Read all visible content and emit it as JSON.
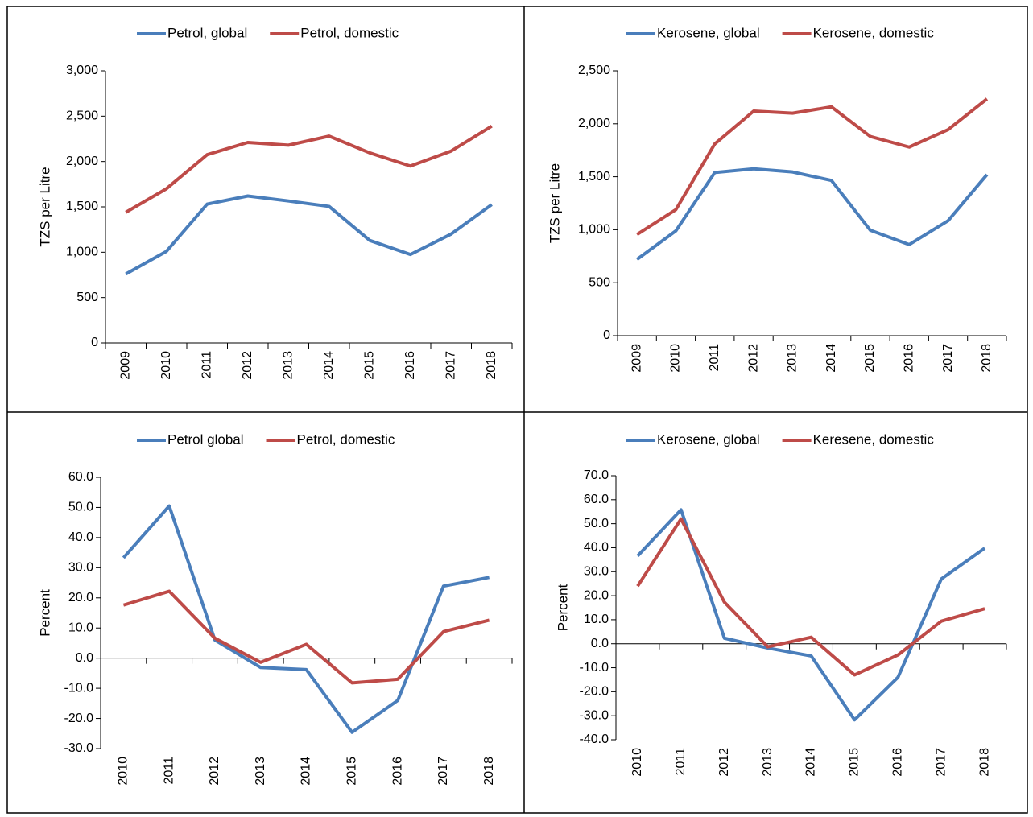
{
  "chart_data": [
    {
      "type": "line",
      "y_label": "TZS per Litre",
      "categories": [
        "2009",
        "2010",
        "2011",
        "2012",
        "2013",
        "2014",
        "2015",
        "2016",
        "2017",
        "2018"
      ],
      "series": [
        {
          "name": "Petrol, global",
          "color": "#4a7ebb",
          "values": [
            760,
            1010,
            1530,
            1620,
            1565,
            1505,
            1130,
            975,
            1200,
            1525
          ]
        },
        {
          "name": "Petrol, domestic",
          "color": "#be4b48",
          "values": [
            1440,
            1700,
            2075,
            2210,
            2180,
            2280,
            2095,
            1950,
            2115,
            2390
          ]
        }
      ],
      "ylim": [
        0,
        3000
      ],
      "yticks": [
        0,
        500,
        {
          "value": 1000,
          "label": "1,000"
        },
        {
          "value": 1500,
          "label": "1,500"
        },
        {
          "value": 2000,
          "label": "2,000"
        },
        {
          "value": 2500,
          "label": "2,500"
        },
        {
          "value": 3000,
          "label": "3,000"
        }
      ]
    },
    {
      "type": "line",
      "y_label": "TZS per Litre",
      "categories": [
        "2009",
        "2010",
        "2011",
        "2012",
        "2013",
        "2014",
        "2015",
        "2016",
        "2017",
        "2018"
      ],
      "series": [
        {
          "name": "Kerosene, global",
          "color": "#4a7ebb",
          "values": [
            720,
            990,
            1540,
            1575,
            1545,
            1465,
            995,
            860,
            1085,
            1520
          ]
        },
        {
          "name": "Kerosene, domestic",
          "color": "#be4b48",
          "values": [
            955,
            1190,
            1810,
            2120,
            2100,
            2160,
            1880,
            1780,
            1945,
            2235
          ]
        }
      ],
      "ylim": [
        0,
        2500
      ],
      "yticks": [
        0,
        500,
        {
          "value": 1000,
          "label": "1,000"
        },
        {
          "value": 1500,
          "label": "1,500"
        },
        {
          "value": 2000,
          "label": "2,000"
        },
        {
          "value": 2500,
          "label": "2,500"
        }
      ]
    },
    {
      "type": "line",
      "y_label": "Percent",
      "categories": [
        "2010",
        "2011",
        "2012",
        "2013",
        "2014",
        "2015",
        "2016",
        "2017",
        "2018"
      ],
      "series": [
        {
          "name": "Petrol global",
          "color": "#4a7ebb",
          "values": [
            33.3,
            50.5,
            6.0,
            -3.1,
            -3.8,
            -24.6,
            -14.0,
            23.9,
            26.8
          ]
        },
        {
          "name": "Petrol, domestic",
          "color": "#be4b48",
          "values": [
            17.6,
            22.2,
            6.6,
            -1.4,
            4.6,
            -8.2,
            -7.0,
            8.8,
            12.6
          ]
        }
      ],
      "ylim": [
        -30,
        60
      ],
      "yticks": [
        {
          "value": -30,
          "label": "-30.0"
        },
        {
          "value": -20,
          "label": "-20.0"
        },
        {
          "value": -10,
          "label": "-10.0"
        },
        {
          "value": 0,
          "label": "0.0"
        },
        {
          "value": 10,
          "label": "10.0"
        },
        {
          "value": 20,
          "label": "20.0"
        },
        {
          "value": 30,
          "label": "30.0"
        },
        {
          "value": 40,
          "label": "40.0"
        },
        {
          "value": 50,
          "label": "50.0"
        },
        {
          "value": 60,
          "label": "60.0"
        }
      ]
    },
    {
      "type": "line",
      "y_label": "Percent",
      "categories": [
        "2010",
        "2011",
        "2012",
        "2013",
        "2014",
        "2015",
        "2016",
        "2017",
        "2018"
      ],
      "series": [
        {
          "name": "Kerosene, global",
          "color": "#4a7ebb",
          "values": [
            36.6,
            55.8,
            2.3,
            -1.8,
            -5.1,
            -31.7,
            -14.0,
            27.0,
            39.8
          ]
        },
        {
          "name": "Keresene, domestic",
          "color": "#be4b48",
          "values": [
            24.0,
            52.0,
            17.3,
            -1.3,
            2.7,
            -13.0,
            -4.7,
            9.4,
            14.6
          ]
        }
      ],
      "ylim": [
        -40,
        70
      ],
      "yticks": [
        {
          "value": -40,
          "label": "-40.0"
        },
        {
          "value": -30,
          "label": "-30.0"
        },
        {
          "value": -20,
          "label": "-20.0"
        },
        {
          "value": -10,
          "label": "-10.0"
        },
        {
          "value": 0,
          "label": "0.0"
        },
        {
          "value": 10,
          "label": "10.0"
        },
        {
          "value": 20,
          "label": "20.0"
        },
        {
          "value": 30,
          "label": "30.0"
        },
        {
          "value": 40,
          "label": "40.0"
        },
        {
          "value": 50,
          "label": "50.0"
        },
        {
          "value": 60,
          "label": "60.0"
        },
        {
          "value": 70,
          "label": "70.0"
        }
      ]
    }
  ]
}
